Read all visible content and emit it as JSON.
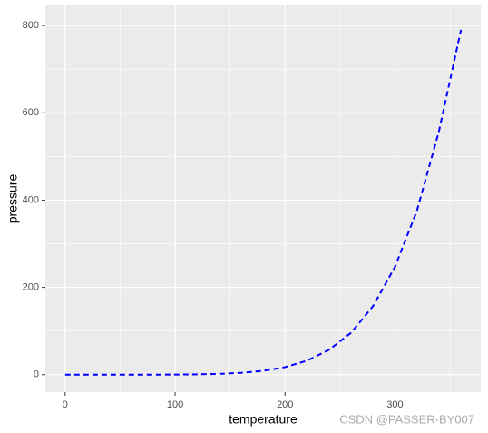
{
  "chart_data": {
    "type": "line",
    "x_label": "temperature",
    "y_label": "pressure",
    "x": [
      0,
      20,
      40,
      60,
      80,
      100,
      120,
      140,
      160,
      180,
      200,
      220,
      240,
      260,
      280,
      300,
      320,
      340,
      360
    ],
    "series": [
      {
        "color": "#0000ff",
        "dashed": true,
        "values": [
          0.0002,
          0.0012,
          0.006,
          0.03,
          0.09,
          0.27,
          0.75,
          1.85,
          4.2,
          8.8,
          17.3,
          32.1,
          57,
          96,
          157,
          247,
          376,
          558,
          790
        ]
      }
    ],
    "xlim": [
      -18,
      378
    ],
    "ylim": [
      -40,
      846
    ],
    "xticks": [
      0,
      100,
      200,
      300
    ],
    "yticks": [
      0,
      200,
      400,
      600,
      800
    ],
    "x_minor_grid": [
      50,
      150,
      250,
      350
    ],
    "y_minor_grid": [
      100,
      300,
      500,
      700
    ],
    "grid": true,
    "watermark": "CSDN @PASSER-BY007"
  }
}
